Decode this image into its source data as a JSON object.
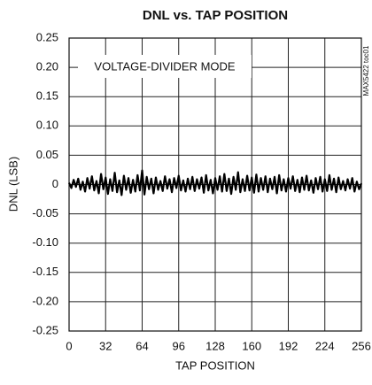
{
  "chart_data": {
    "type": "line",
    "title": "DNL vs. TAP POSITION",
    "xlabel": "TAP POSITION",
    "ylabel": "DNL (LSB)",
    "annotation": "VOLTAGE-DIVIDER MODE",
    "figure_code": "MAX5422 toc01",
    "color": "#000000",
    "grid": true,
    "xlim": [
      0,
      256
    ],
    "xticks": [
      0,
      32,
      64,
      96,
      128,
      160,
      192,
      224,
      256
    ],
    "ylim": [
      -0.25,
      0.25
    ],
    "yticks": [
      -0.25,
      {
        "value": -0.2,
        "label": "-0.20"
      },
      -0.15,
      {
        "value": -0.1,
        "label": "-0.10"
      },
      -0.05,
      0,
      0.05,
      {
        "value": 0.1,
        "label": "0.10"
      },
      0.15,
      {
        "value": 0.2,
        "label": "0.20"
      },
      0.25
    ],
    "x": [
      0,
      2,
      4,
      6,
      8,
      10,
      12,
      14,
      16,
      18,
      20,
      22,
      24,
      26,
      28,
      30,
      32,
      34,
      36,
      38,
      40,
      42,
      44,
      46,
      48,
      50,
      52,
      54,
      56,
      58,
      60,
      62,
      64,
      66,
      68,
      70,
      72,
      74,
      76,
      78,
      80,
      82,
      84,
      86,
      88,
      90,
      92,
      94,
      96,
      98,
      100,
      102,
      104,
      106,
      108,
      110,
      112,
      114,
      116,
      118,
      120,
      122,
      124,
      126,
      128,
      130,
      132,
      134,
      136,
      138,
      140,
      142,
      144,
      146,
      148,
      150,
      152,
      154,
      156,
      158,
      160,
      162,
      164,
      166,
      168,
      170,
      172,
      174,
      176,
      178,
      180,
      182,
      184,
      186,
      188,
      190,
      192,
      194,
      196,
      198,
      200,
      202,
      204,
      206,
      208,
      210,
      212,
      214,
      216,
      218,
      220,
      222,
      224,
      226,
      228,
      230,
      232,
      234,
      236,
      238,
      240,
      242,
      244,
      246,
      248,
      250,
      252,
      254,
      256
    ],
    "values": [
      0.003,
      -0.006,
      0.008,
      -0.004,
      0.01,
      -0.009,
      0.005,
      -0.012,
      0.011,
      -0.007,
      0.014,
      -0.01,
      0.006,
      -0.015,
      0.018,
      -0.008,
      0.012,
      -0.016,
      0.009,
      -0.011,
      0.02,
      -0.013,
      0.007,
      -0.018,
      0.015,
      -0.009,
      0.011,
      -0.014,
      0.008,
      -0.012,
      0.016,
      -0.01,
      0.024,
      -0.017,
      0.013,
      -0.008,
      0.01,
      -0.015,
      0.012,
      -0.009,
      0.006,
      -0.011,
      0.014,
      -0.007,
      0.009,
      -0.013,
      0.011,
      -0.006,
      0.015,
      -0.01,
      0.007,
      -0.012,
      0.01,
      -0.008,
      0.013,
      -0.011,
      0.009,
      -0.007,
      0.012,
      -0.014,
      0.016,
      -0.01,
      0.008,
      -0.015,
      0.011,
      -0.009,
      0.014,
      -0.012,
      0.018,
      -0.011,
      0.01,
      -0.016,
      0.013,
      -0.009,
      0.021,
      -0.013,
      0.009,
      -0.011,
      0.015,
      -0.01,
      0.012,
      -0.014,
      0.017,
      -0.012,
      0.011,
      -0.009,
      0.014,
      -0.013,
      0.01,
      -0.008,
      0.013,
      -0.015,
      0.016,
      -0.01,
      0.009,
      -0.012,
      0.011,
      -0.007,
      0.014,
      -0.011,
      0.008,
      -0.013,
      0.012,
      -0.009,
      0.015,
      -0.01,
      0.007,
      -0.014,
      0.011,
      -0.008,
      0.013,
      -0.012,
      0.009,
      -0.011,
      0.016,
      -0.009,
      0.01,
      -0.013,
      0.012,
      -0.008,
      0.006,
      -0.01,
      0.009,
      -0.007,
      0.011,
      -0.012,
      0.005,
      -0.008,
      0.002
    ]
  }
}
